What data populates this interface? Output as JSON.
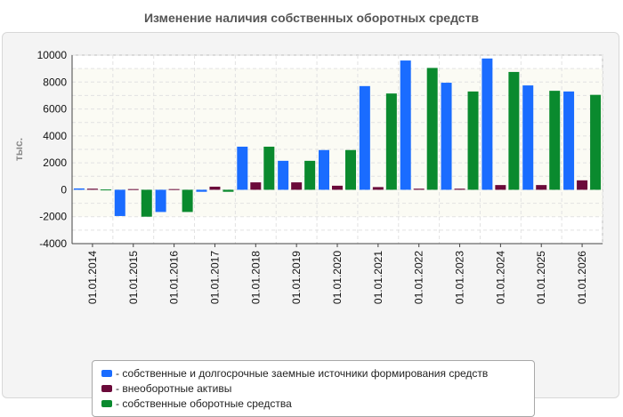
{
  "chart_data": {
    "type": "bar",
    "title": "Изменение наличия собственных оборотных средств",
    "ylabel": "тыс.",
    "xlabel": "",
    "ylim": [
      -4000,
      10000
    ],
    "yticks": [
      10000,
      8000,
      6000,
      4000,
      2000,
      0,
      -2000,
      -4000
    ],
    "grid": true,
    "legend_position": "bottom",
    "categories": [
      "01.01.2014",
      "01.01.2015",
      "01.01.2016",
      "01.01.2017",
      "01.01.2018",
      "01.01.2019",
      "01.01.2020",
      "01.01.2021",
      "01.01.2022",
      "01.01.2023",
      "01.01.2024",
      "01.01.2025",
      "01.01.2026"
    ],
    "series": [
      {
        "name": "собственные и долгосрочные заемные источники формирования средств",
        "color": "#1a6cff",
        "values": [
          100,
          -1950,
          -1650,
          -150,
          3200,
          2150,
          2950,
          7700,
          9600,
          7950,
          9750,
          7750,
          7300
        ]
      },
      {
        "name": "внеоборотные активы",
        "color": "#6b0a3a",
        "values": [
          80,
          50,
          50,
          230,
          550,
          550,
          300,
          200,
          80,
          80,
          350,
          350,
          700
        ]
      },
      {
        "name": "собственные оборотные средства",
        "color": "#0a8a2e",
        "values": [
          20,
          -2000,
          -1650,
          -150,
          3200,
          2150,
          2950,
          7150,
          9050,
          7300,
          8750,
          7350,
          7050
        ]
      }
    ]
  }
}
